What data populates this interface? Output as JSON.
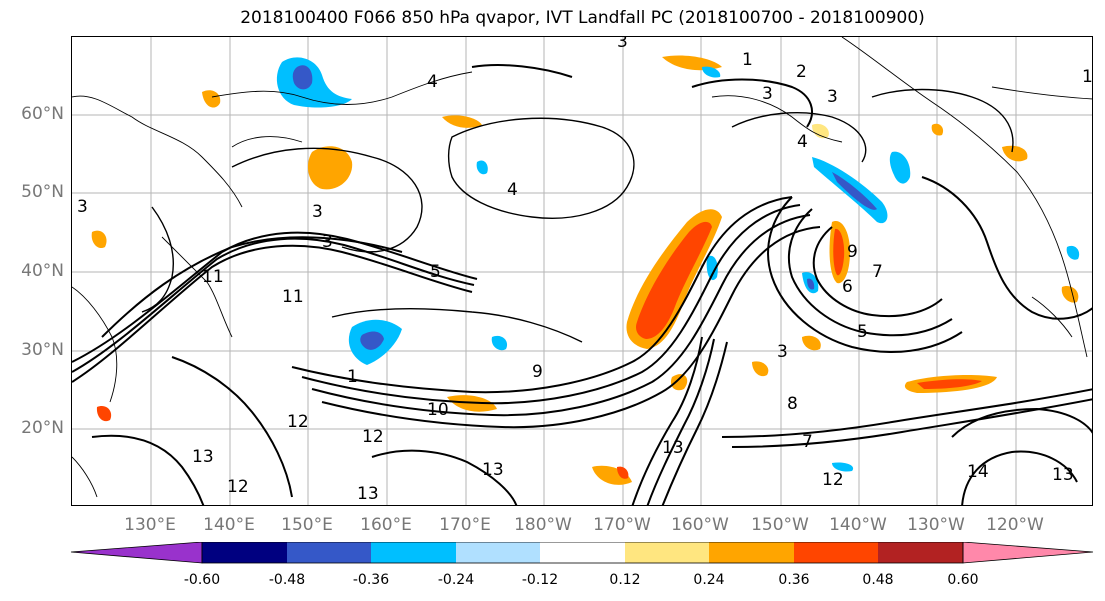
{
  "title": "2018100400 F066 850 hPa qvapor, IVT Landfall PC (2018100700 - 2018100900)",
  "lat_labels": [
    "60°N",
    "50°N",
    "40°N",
    "30°N",
    "20°N"
  ],
  "lon_labels": [
    "130°E",
    "140°E",
    "150°E",
    "160°E",
    "170°E",
    "180°W",
    "170°W",
    "160°W",
    "150°W",
    "140°W",
    "130°W",
    "120°W"
  ],
  "contour_labels": [
    "3",
    "1",
    "2",
    "3",
    "1",
    "4",
    "3",
    "3",
    "4",
    "3",
    "3",
    "4",
    "5",
    "9",
    "7",
    "6",
    "11",
    "5",
    "3",
    "12",
    "11",
    "1",
    "10",
    "12",
    "13",
    "12",
    "9",
    "8",
    "7",
    "13",
    "14",
    "13",
    "13",
    "12",
    "13"
  ],
  "colorbar": {
    "ticks": [
      "-0.60",
      "-0.48",
      "-0.36",
      "-0.24",
      "-0.12",
      "0.12",
      "0.24",
      "0.36",
      "0.48",
      "0.60"
    ],
    "colors": [
      "#9932cc",
      "#000080",
      "#3558c8",
      "#00bfff",
      "#b0e0ff",
      "#ffffff",
      "#ffe680",
      "#ffa500",
      "#ff4500",
      "#b22222",
      "#ff88aa"
    ]
  }
}
